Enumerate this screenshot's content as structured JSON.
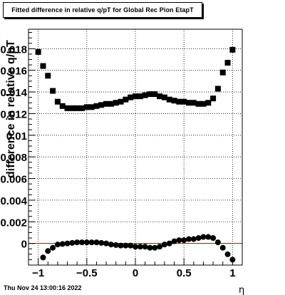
{
  "title": "Fitted difference in relative q/pT for Global Rec Pion EtapT",
  "footer": "Thu Nov 24 13:00:16 2022",
  "chart_data": {
    "type": "scatter",
    "xlabel": "η",
    "ylabel": "difference in relative q/pT",
    "xlim": [
      -1.1,
      1.1
    ],
    "ylim": [
      -0.002,
      0.0198
    ],
    "x_ticks": [
      -1,
      -0.5,
      0,
      0.5,
      1
    ],
    "x_tick_labels": [
      "−1",
      "−0.5",
      "0",
      "0.5",
      "1"
    ],
    "y_ticks": [
      0,
      0.002,
      0.004,
      0.006,
      0.008,
      0.01,
      0.012,
      0.014,
      0.016,
      0.018
    ],
    "y_tick_labels": [
      "0",
      "0.002",
      "0.004",
      "0.006",
      "0.008",
      "0.01",
      "0.012",
      "0.014",
      "0.016",
      "0.018"
    ],
    "grid": true,
    "reference_line": {
      "y": 0,
      "color": "#cc0000"
    },
    "series": [
      {
        "marker": "square",
        "color": "#000000",
        "x": [
          -1.0,
          -0.95,
          -0.9,
          -0.85,
          -0.8,
          -0.75,
          -0.7,
          -0.65,
          -0.6,
          -0.55,
          -0.5,
          -0.45,
          -0.4,
          -0.35,
          -0.3,
          -0.25,
          -0.2,
          -0.15,
          -0.1,
          -0.05,
          0.0,
          0.05,
          0.1,
          0.15,
          0.2,
          0.25,
          0.3,
          0.35,
          0.4,
          0.45,
          0.5,
          0.55,
          0.6,
          0.65,
          0.7,
          0.75,
          0.8,
          0.85,
          0.9,
          0.95,
          1.0
        ],
        "values": [
          0.0177,
          0.0164,
          0.0155,
          0.0141,
          0.0131,
          0.0127,
          0.0125,
          0.0125,
          0.0125,
          0.0125,
          0.0126,
          0.0126,
          0.0127,
          0.0128,
          0.0129,
          0.0129,
          0.013,
          0.0131,
          0.0133,
          0.0135,
          0.0136,
          0.0136,
          0.0137,
          0.0138,
          0.0138,
          0.0136,
          0.0135,
          0.0133,
          0.0132,
          0.0131,
          0.0131,
          0.013,
          0.013,
          0.0129,
          0.0129,
          0.013,
          0.0134,
          0.0143,
          0.0158,
          0.0167,
          0.0179
        ]
      },
      {
        "marker": "circle",
        "color": "#000000",
        "x": [
          -0.95,
          -0.9,
          -0.85,
          -0.8,
          -0.75,
          -0.7,
          -0.65,
          -0.6,
          -0.55,
          -0.5,
          -0.45,
          -0.4,
          -0.35,
          -0.3,
          -0.25,
          -0.2,
          -0.15,
          -0.1,
          -0.05,
          0.0,
          0.05,
          0.1,
          0.15,
          0.2,
          0.25,
          0.3,
          0.35,
          0.4,
          0.45,
          0.5,
          0.55,
          0.6,
          0.65,
          0.7,
          0.75,
          0.8,
          0.85,
          0.9,
          0.95,
          1.0
        ],
        "values": [
          -0.0013,
          -0.0007,
          -0.0004,
          -0.0001,
          -5e-05,
          0.0,
          5e-05,
          0.0001,
          0.0001,
          0.0001,
          0.0001,
          0.0001,
          5e-05,
          0.0,
          -0.0001,
          -0.00015,
          -0.0002,
          -0.0002,
          -0.0002,
          -0.0003,
          -0.0003,
          -0.0003,
          -0.0004,
          -0.0004,
          -0.0003,
          -0.0001,
          0.0,
          0.0002,
          0.0003,
          0.0003,
          0.0004,
          0.0004,
          0.0005,
          0.0006,
          0.0006,
          0.0005,
          0.0001,
          -0.0004,
          -0.001,
          -0.0015
        ]
      }
    ]
  }
}
